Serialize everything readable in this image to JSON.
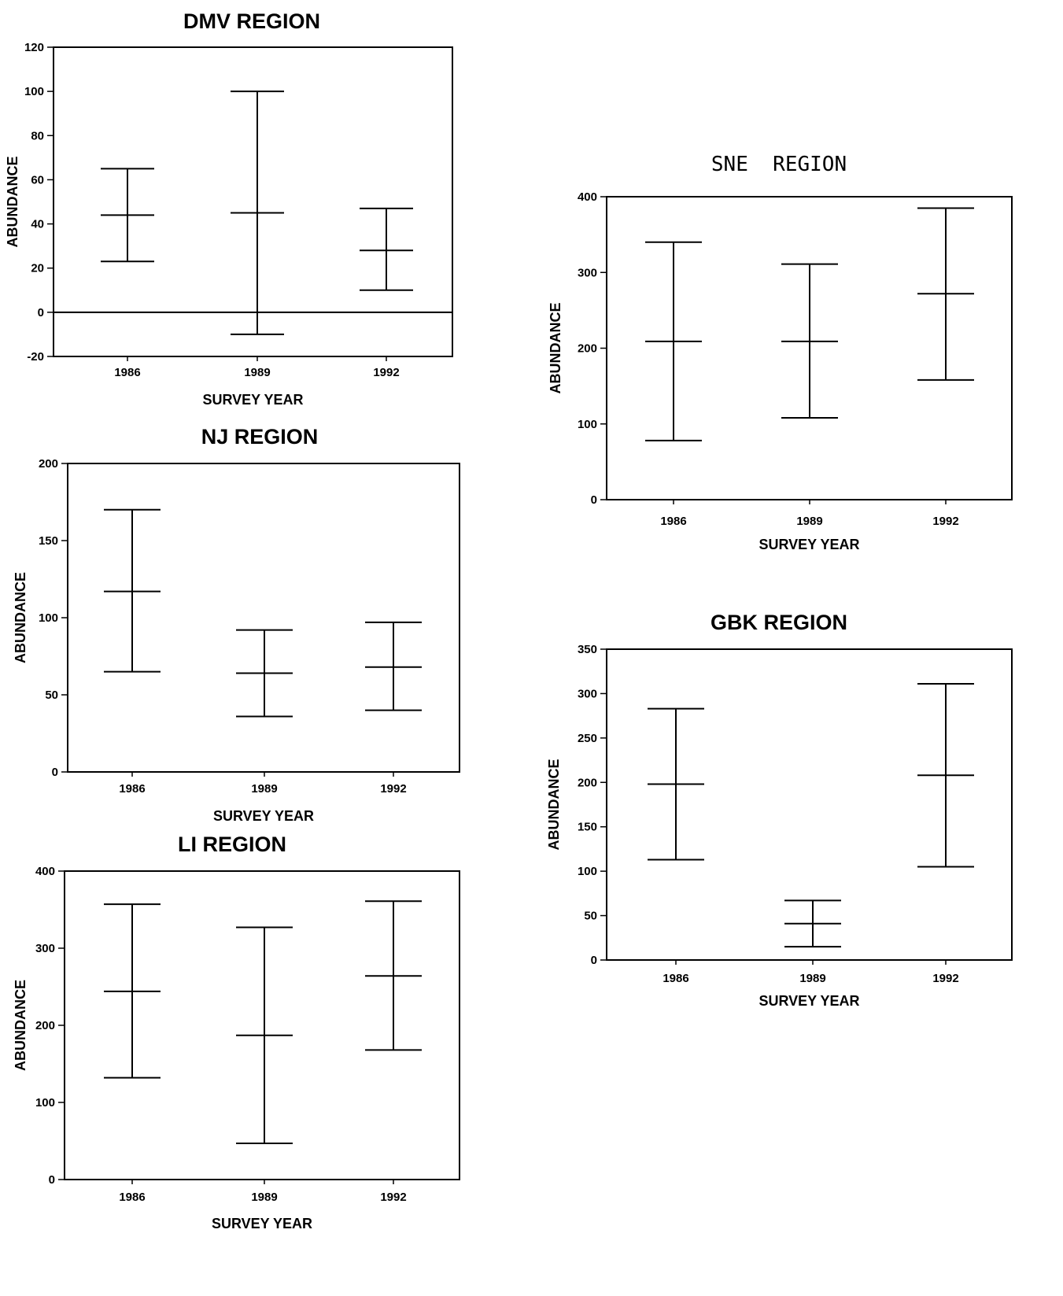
{
  "chart_data": [
    {
      "id": "dmv",
      "type": "errorbar",
      "title": "DMV REGION",
      "xlabel": "SURVEY YEAR",
      "ylabel": "ABUNDANCE",
      "categories": [
        "1986",
        "1989",
        "1992"
      ],
      "ylim": [
        -20,
        120
      ],
      "yticks": [
        -20,
        0,
        20,
        40,
        60,
        80,
        100,
        120
      ],
      "zero_line": true,
      "points": [
        {
          "x": "1986",
          "mean": 44,
          "low": 23,
          "high": 65
        },
        {
          "x": "1989",
          "mean": 45,
          "low": -10,
          "high": 100
        },
        {
          "x": "1992",
          "mean": 28,
          "low": 10,
          "high": 47
        }
      ]
    },
    {
      "id": "nj",
      "type": "errorbar",
      "title": "NJ REGION",
      "xlabel": "SURVEY YEAR",
      "ylabel": "ABUNDANCE",
      "categories": [
        "1986",
        "1989",
        "1992"
      ],
      "ylim": [
        0,
        200
      ],
      "yticks": [
        0,
        50,
        100,
        150,
        200
      ],
      "points": [
        {
          "x": "1986",
          "mean": 117,
          "low": 65,
          "high": 170
        },
        {
          "x": "1989",
          "mean": 64,
          "low": 36,
          "high": 92
        },
        {
          "x": "1992",
          "mean": 68,
          "low": 40,
          "high": 97
        }
      ]
    },
    {
      "id": "li",
      "type": "errorbar",
      "title": "LI REGION",
      "xlabel": "SURVEY YEAR",
      "ylabel": "ABUNDANCE",
      "categories": [
        "1986",
        "1989",
        "1992"
      ],
      "ylim": [
        0,
        400
      ],
      "yticks": [
        0,
        100,
        200,
        300,
        400
      ],
      "points": [
        {
          "x": "1986",
          "mean": 244,
          "low": 132,
          "high": 357
        },
        {
          "x": "1989",
          "mean": 187,
          "low": 47,
          "high": 327
        },
        {
          "x": "1992",
          "mean": 264,
          "low": 168,
          "high": 361
        }
      ]
    },
    {
      "id": "sne",
      "type": "errorbar",
      "title": "SNE  REGION",
      "xlabel": "SURVEY YEAR",
      "ylabel": "ABUNDANCE",
      "categories": [
        "1986",
        "1989",
        "1992"
      ],
      "ylim": [
        0,
        400
      ],
      "yticks": [
        0,
        100,
        200,
        300,
        400
      ],
      "points": [
        {
          "x": "1986",
          "mean": 209,
          "low": 78,
          "high": 340
        },
        {
          "x": "1989",
          "mean": 209,
          "low": 108,
          "high": 311
        },
        {
          "x": "1992",
          "mean": 272,
          "low": 158,
          "high": 385
        }
      ]
    },
    {
      "id": "gbk",
      "type": "errorbar",
      "title": "GBK REGION",
      "xlabel": "SURVEY YEAR",
      "ylabel": "ABUNDANCE",
      "categories": [
        "1986",
        "1989",
        "1992"
      ],
      "ylim": [
        0,
        350
      ],
      "yticks": [
        0,
        50,
        100,
        150,
        200,
        250,
        300,
        350
      ],
      "points": [
        {
          "x": "1986",
          "mean": 198,
          "low": 113,
          "high": 283
        },
        {
          "x": "1989",
          "mean": 41,
          "low": 15,
          "high": 67
        },
        {
          "x": "1992",
          "mean": 208,
          "low": 105,
          "high": 311
        }
      ]
    }
  ]
}
